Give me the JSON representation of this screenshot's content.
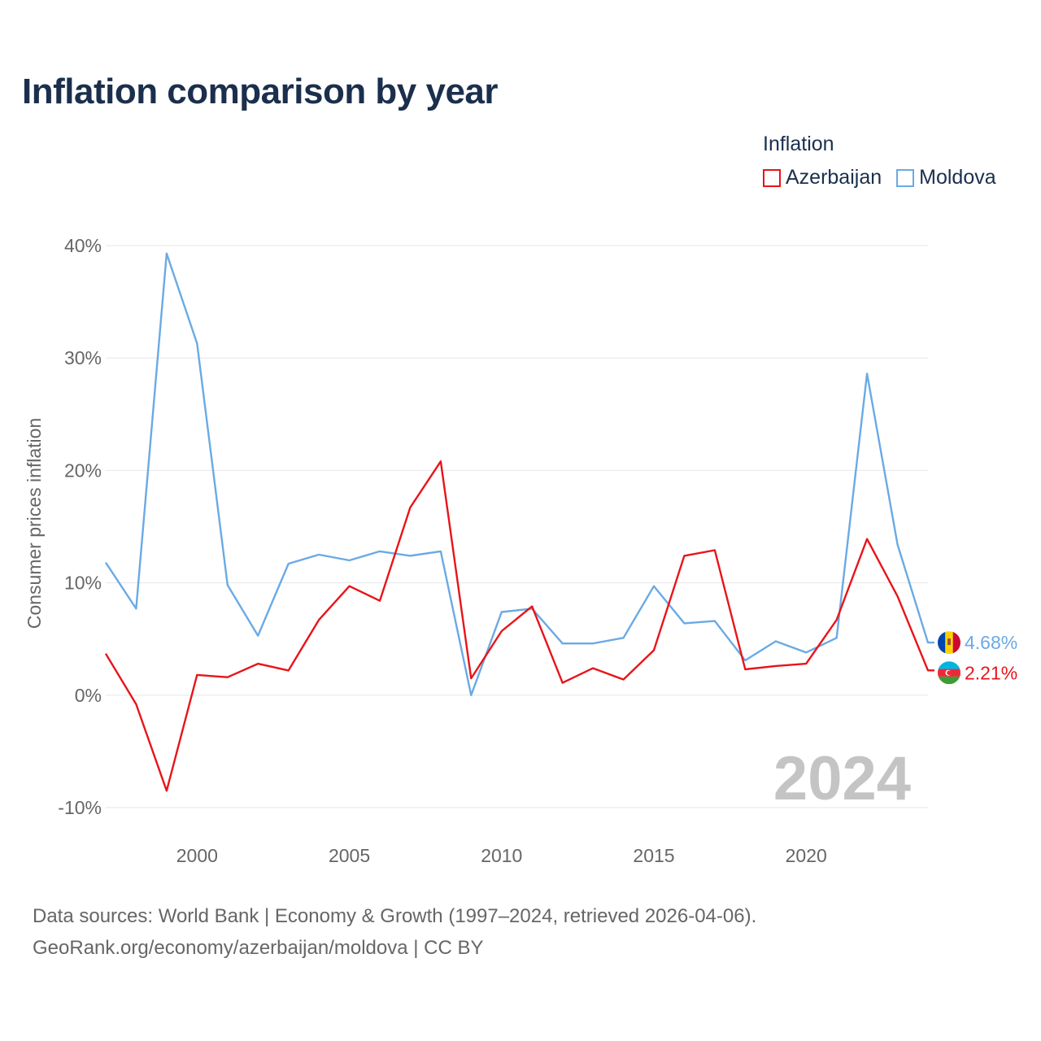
{
  "title": "Inflation comparison by year",
  "legend": {
    "title": "Inflation",
    "items": [
      {
        "name": "Azerbaijan",
        "color": "#e8141a"
      },
      {
        "name": "Moldova",
        "color": "#6aaae4"
      }
    ]
  },
  "chart_data": {
    "type": "line",
    "ylabel": "Consumer prices inflation",
    "xlabel": "",
    "ylim": [
      -10,
      40
    ],
    "xlim": [
      1997,
      2024
    ],
    "yticks": [
      -10,
      0,
      10,
      20,
      30,
      40
    ],
    "ytick_labels": [
      "-10%",
      "0%",
      "10%",
      "20%",
      "30%",
      "40%"
    ],
    "xticks": [
      2000,
      2005,
      2010,
      2015,
      2020
    ],
    "xtick_labels": [
      "2000",
      "2005",
      "2010",
      "2015",
      "2020"
    ],
    "x": [
      1997,
      1998,
      1999,
      2000,
      2001,
      2002,
      2003,
      2004,
      2005,
      2006,
      2007,
      2008,
      2009,
      2010,
      2011,
      2012,
      2013,
      2014,
      2015,
      2016,
      2017,
      2018,
      2019,
      2020,
      2021,
      2022,
      2023,
      2024
    ],
    "series": [
      {
        "name": "Azerbaijan",
        "color": "#e8141a",
        "values": [
          3.7,
          -0.8,
          -8.5,
          1.8,
          1.6,
          2.8,
          2.2,
          6.7,
          9.7,
          8.4,
          16.7,
          20.8,
          1.5,
          5.7,
          7.9,
          1.1,
          2.4,
          1.4,
          4.0,
          12.4,
          12.9,
          2.3,
          2.6,
          2.8,
          6.7,
          13.9,
          8.8,
          2.21
        ],
        "end_label": "2.21%"
      },
      {
        "name": "Moldova",
        "color": "#6aaae4",
        "values": [
          11.8,
          7.7,
          39.3,
          31.3,
          9.8,
          5.3,
          11.7,
          12.5,
          12.0,
          12.8,
          12.4,
          12.8,
          0.0,
          7.4,
          7.7,
          4.6,
          4.6,
          5.1,
          9.7,
          6.4,
          6.6,
          3.1,
          4.8,
          3.8,
          5.1,
          28.6,
          13.4,
          4.68
        ],
        "end_label": "4.68%"
      }
    ],
    "annotation": "2024",
    "grid": true
  },
  "footer": {
    "line1": "Data sources: World Bank | Economy & Growth (1997–2024, retrieved 2026-04-06).",
    "line2": "GeoRank.org/economy/azerbaijan/moldova | CC BY"
  }
}
